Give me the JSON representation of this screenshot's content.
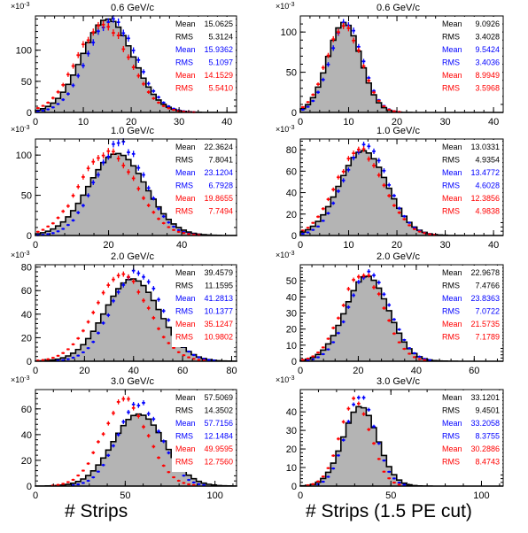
{
  "figure": {
    "xtitle_left": "# Strips",
    "xtitle_right": "# Strips (1.5 PE cut)",
    "exponent_label": "×10",
    "exponent_power": "-3",
    "colors": {
      "fill": "#b4b4b4",
      "outline": "#000000",
      "blue": "#0000ff",
      "red": "#ff0000"
    }
  },
  "chart_data": [
    {
      "type": "bar",
      "title": "0.6 GeV/c",
      "xlim": [
        0,
        42
      ],
      "ylim": [
        0,
        155
      ],
      "xticks": [
        0,
        10,
        20,
        30,
        40
      ],
      "yticks": [
        0,
        50,
        100
      ],
      "stats": [
        {
          "label": "Mean",
          "value": "15.0625",
          "color": "#000000"
        },
        {
          "label": "RMS",
          "value": "5.3124",
          "color": "#000000"
        },
        {
          "label": "Mean",
          "value": "15.9362",
          "color": "#0000ff"
        },
        {
          "label": "RMS",
          "value": "5.1097",
          "color": "#0000ff"
        },
        {
          "label": "Mean",
          "value": "14.1529",
          "color": "#ff0000"
        },
        {
          "label": "RMS",
          "value": "5.5410",
          "color": "#ff0000"
        }
      ],
      "mean": 15.06,
      "rms": 5.31,
      "peak": 150,
      "mean_b": 15.94,
      "rms_b": 5.11,
      "peak_b": 148,
      "mean_r": 14.15,
      "rms_r": 5.54,
      "peak_r": 141
    },
    {
      "type": "bar",
      "title": "0.6 GeV/c",
      "xlim": [
        0,
        42
      ],
      "ylim": [
        0,
        120
      ],
      "xticks": [
        0,
        10,
        20,
        30,
        40
      ],
      "yticks": [
        0,
        50,
        100
      ],
      "stats": [
        {
          "label": "Mean",
          "value": "9.0926",
          "color": "#000000"
        },
        {
          "label": "RMS",
          "value": "3.4028",
          "color": "#000000"
        },
        {
          "label": "Mean",
          "value": "9.5424",
          "color": "#0000ff"
        },
        {
          "label": "RMS",
          "value": "3.4036",
          "color": "#0000ff"
        },
        {
          "label": "Mean",
          "value": "8.9949",
          "color": "#ff0000"
        },
        {
          "label": "RMS",
          "value": "3.5968",
          "color": "#ff0000"
        }
      ],
      "mean": 9.09,
      "rms": 3.4,
      "peak": 112,
      "mean_b": 9.54,
      "rms_b": 3.4,
      "peak_b": 110,
      "mean_r": 8.99,
      "rms_r": 3.6,
      "peak_r": 108
    },
    {
      "type": "bar",
      "title": "1.0 GeV/c",
      "xlim": [
        0,
        55
      ],
      "ylim": [
        0,
        120
      ],
      "xticks": [
        0,
        20,
        40
      ],
      "yticks": [
        0,
        50,
        100
      ],
      "stats": [
        {
          "label": "Mean",
          "value": "22.3624",
          "color": "#000000"
        },
        {
          "label": "RMS",
          "value": "7.8041",
          "color": "#000000"
        },
        {
          "label": "Mean",
          "value": "23.1204",
          "color": "#0000ff"
        },
        {
          "label": "RMS",
          "value": "6.7928",
          "color": "#0000ff"
        },
        {
          "label": "Mean",
          "value": "19.8655",
          "color": "#ff0000"
        },
        {
          "label": "RMS",
          "value": "7.7494",
          "color": "#ff0000"
        }
      ],
      "mean": 22.36,
      "rms": 7.8,
      "peak": 102,
      "mean_b": 23.12,
      "rms_b": 6.79,
      "peak_b": 114,
      "mean_r": 19.87,
      "rms_r": 7.75,
      "peak_r": 103
    },
    {
      "type": "bar",
      "title": "1.0 GeV/c",
      "xlim": [
        0,
        42
      ],
      "ylim": [
        0,
        90
      ],
      "xticks": [
        0,
        10,
        20,
        30,
        40
      ],
      "yticks": [
        0,
        20,
        40,
        60,
        80
      ],
      "stats": [
        {
          "label": "Mean",
          "value": "13.0331",
          "color": "#000000"
        },
        {
          "label": "RMS",
          "value": "4.9354",
          "color": "#000000"
        },
        {
          "label": "Mean",
          "value": "13.4772",
          "color": "#0000ff"
        },
        {
          "label": "RMS",
          "value": "4.6028",
          "color": "#0000ff"
        },
        {
          "label": "Mean",
          "value": "12.3856",
          "color": "#ff0000"
        },
        {
          "label": "RMS",
          "value": "4.9838",
          "color": "#ff0000"
        }
      ],
      "mean": 13.03,
      "rms": 4.94,
      "peak": 79,
      "mean_b": 13.48,
      "rms_b": 4.6,
      "peak_b": 84,
      "mean_r": 12.39,
      "rms_r": 4.98,
      "peak_r": 79
    },
    {
      "type": "bar",
      "title": "2.0 GeV/c",
      "xlim": [
        0,
        82
      ],
      "ylim": [
        0,
        82
      ],
      "xticks": [
        0,
        20,
        40,
        60,
        80
      ],
      "yticks": [
        0,
        20,
        40,
        60,
        80
      ],
      "stats": [
        {
          "label": "Mean",
          "value": "39.4579",
          "color": "#000000"
        },
        {
          "label": "RMS",
          "value": "11.1595",
          "color": "#000000"
        },
        {
          "label": "Mean",
          "value": "41.2813",
          "color": "#0000ff"
        },
        {
          "label": "RMS",
          "value": "10.1377",
          "color": "#0000ff"
        },
        {
          "label": "Mean",
          "value": "35.1247",
          "color": "#ff0000"
        },
        {
          "label": "RMS",
          "value": "10.9802",
          "color": "#ff0000"
        }
      ],
      "mean": 39.46,
      "rms": 11.16,
      "peak": 70,
      "mean_b": 41.28,
      "rms_b": 10.14,
      "peak_b": 77,
      "mean_r": 35.12,
      "rms_r": 10.98,
      "peak_r": 72
    },
    {
      "type": "bar",
      "title": "2.0 GeV/c",
      "xlim": [
        0,
        70
      ],
      "ylim": [
        0,
        60
      ],
      "xticks": [
        0,
        20,
        40,
        60
      ],
      "yticks": [
        0,
        10,
        20,
        30,
        40,
        50
      ],
      "stats": [
        {
          "label": "Mean",
          "value": "22.9678",
          "color": "#000000"
        },
        {
          "label": "RMS",
          "value": "7.4766",
          "color": "#000000"
        },
        {
          "label": "Mean",
          "value": "23.8363",
          "color": "#0000ff"
        },
        {
          "label": "RMS",
          "value": "7.0722",
          "color": "#0000ff"
        },
        {
          "label": "Mean",
          "value": "21.5735",
          "color": "#ff0000"
        },
        {
          "label": "RMS",
          "value": "7.1789",
          "color": "#ff0000"
        }
      ],
      "mean": 22.97,
      "rms": 7.48,
      "peak": 53,
      "mean_b": 23.84,
      "rms_b": 7.07,
      "peak_b": 55,
      "mean_r": 21.57,
      "rms_r": 7.18,
      "peak_r": 55
    },
    {
      "type": "bar",
      "title": "3.0 GeV/c",
      "xlim": [
        0,
        112
      ],
      "ylim": [
        0,
        75
      ],
      "xticks": [
        0,
        50,
        100
      ],
      "yticks": [
        0,
        20,
        40,
        60
      ],
      "stats": [
        {
          "label": "Mean",
          "value": "57.5069",
          "color": "#000000"
        },
        {
          "label": "RMS",
          "value": "14.3502",
          "color": "#000000"
        },
        {
          "label": "Mean",
          "value": "57.7156",
          "color": "#0000ff"
        },
        {
          "label": "RMS",
          "value": "12.1484",
          "color": "#0000ff"
        },
        {
          "label": "Mean",
          "value": "49.9595",
          "color": "#ff0000"
        },
        {
          "label": "RMS",
          "value": "12.7560",
          "color": "#ff0000"
        }
      ],
      "mean": 57.51,
      "rms": 14.35,
      "peak": 56,
      "mean_b": 57.72,
      "rms_b": 12.15,
      "peak_b": 64,
      "mean_r": 49.96,
      "rms_r": 12.76,
      "peak_r": 66
    },
    {
      "type": "bar",
      "title": "3.0 GeV/c",
      "xlim": [
        0,
        112
      ],
      "ylim": [
        0,
        52
      ],
      "xticks": [
        0,
        50,
        100
      ],
      "yticks": [
        0,
        10,
        20,
        30,
        40
      ],
      "stats": [
        {
          "label": "Mean",
          "value": "33.1201",
          "color": "#000000"
        },
        {
          "label": "RMS",
          "value": "9.4501",
          "color": "#000000"
        },
        {
          "label": "Mean",
          "value": "33.2058",
          "color": "#0000ff"
        },
        {
          "label": "RMS",
          "value": "8.3755",
          "color": "#0000ff"
        },
        {
          "label": "Mean",
          "value": "30.2886",
          "color": "#ff0000"
        },
        {
          "label": "RMS",
          "value": "8.4743",
          "color": "#ff0000"
        }
      ],
      "mean": 33.12,
      "rms": 9.45,
      "peak": 43,
      "mean_b": 33.21,
      "rms_b": 8.38,
      "peak_b": 47,
      "mean_r": 30.29,
      "rms_r": 8.47,
      "peak_r": 47
    }
  ]
}
